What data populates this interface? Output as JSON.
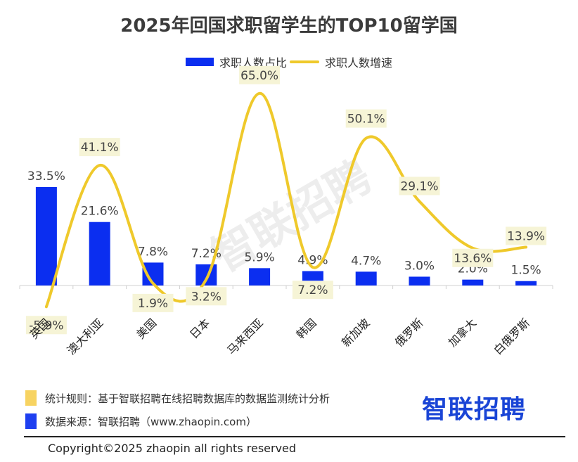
{
  "title": "2025年回国求职留学生的TOP10留学国",
  "legend": {
    "bar_label": "求职人数占比",
    "line_label": "求职人数增速"
  },
  "watermark": "智联招聘",
  "colors": {
    "bar": "#0b2ef0",
    "line": "#efc92b",
    "label_bg": "#f6f4d6",
    "axis": "#d0d0d0"
  },
  "chart_data": {
    "type": "bar",
    "title": "2025年回国求职留学生的TOP10留学国",
    "xlabel": "",
    "ylabel": "",
    "categories": [
      "英国",
      "澳大利亚",
      "美国",
      "日本",
      "马来西亚",
      "韩国",
      "新加坡",
      "俄罗斯",
      "加拿大",
      "白俄罗斯"
    ],
    "series": [
      {
        "name": "求职人数占比",
        "type": "bar",
        "values": [
          33.5,
          21.6,
          7.8,
          7.2,
          5.9,
          4.9,
          4.7,
          3.0,
          2.0,
          1.5
        ],
        "labels": [
          "33.5%",
          "21.6%",
          "7.8%",
          "7.2%",
          "5.9%",
          "4.9%",
          "4.7%",
          "3.0%",
          "2.0%",
          "1.5%"
        ]
      },
      {
        "name": "求职人数增速",
        "type": "line",
        "smooth": true,
        "values": [
          -5.9,
          41.1,
          1.9,
          3.2,
          65.0,
          7.2,
          50.1,
          29.1,
          13.6,
          13.9
        ],
        "labels": [
          "-5.9%",
          "41.1%",
          "1.9%",
          "3.2%",
          "65.0%",
          "7.2%",
          "50.1%",
          "29.1%",
          "13.6%",
          "13.9%"
        ]
      }
    ],
    "legend_position": "top-center",
    "grid": false,
    "x_label_rotation": "-45deg"
  },
  "footer": {
    "rule": "统计规则：基于智联招聘在线招聘数据库的数据监测统计分析",
    "source": "数据来源：智联招聘（www.zhaopin.com）",
    "brand": "智联招聘",
    "copyright": "Copyright©2025 zhaopin all rights reserved"
  }
}
